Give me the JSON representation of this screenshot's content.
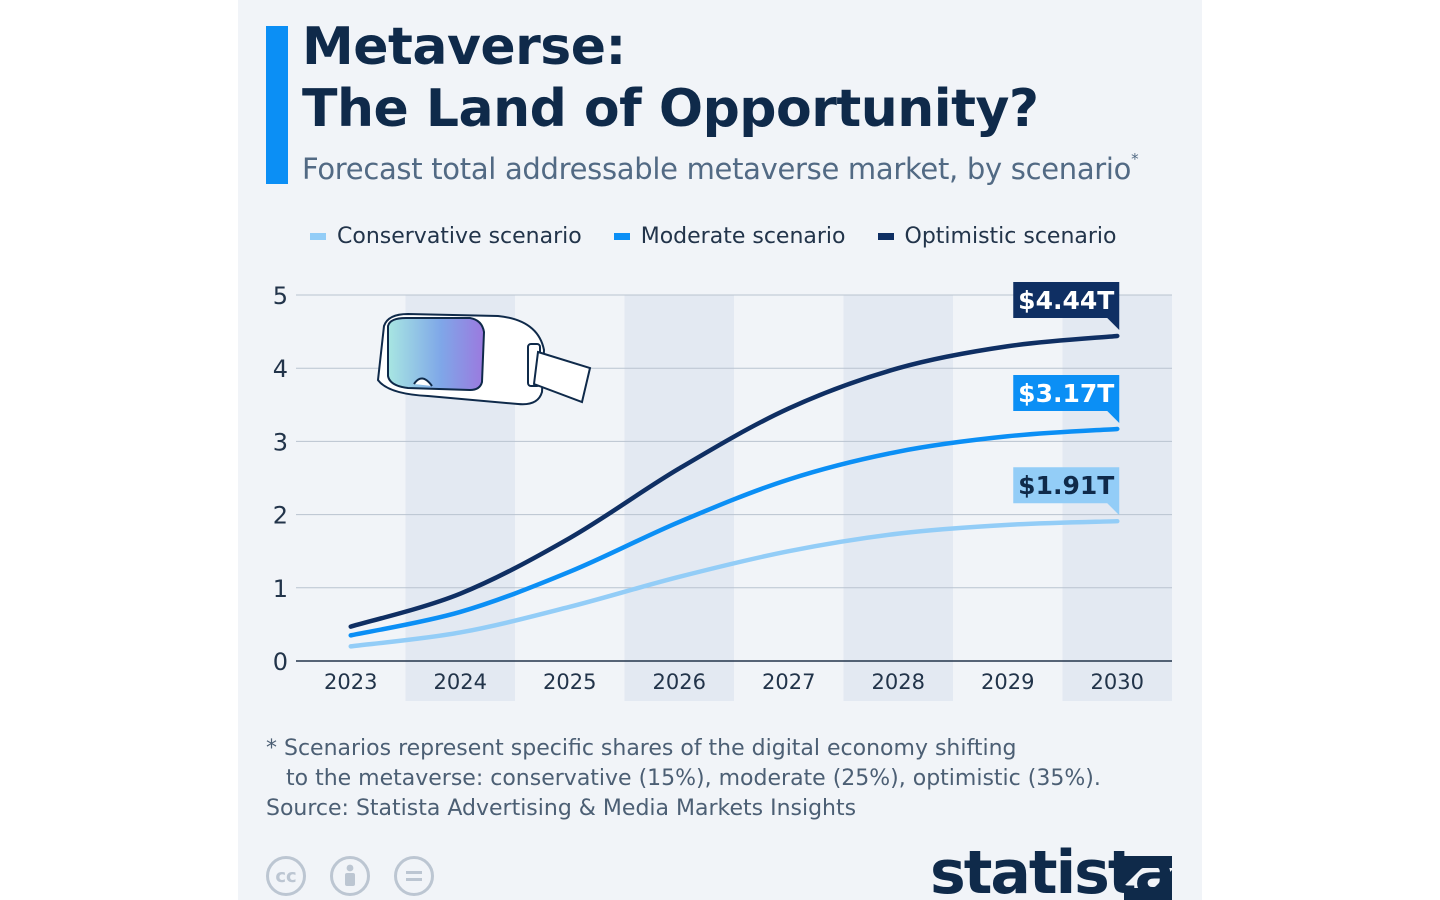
{
  "title_line1": "Metaverse:",
  "title_line2": "The Land of Opportunity?",
  "subtitle": "Forecast total addressable metaverse market, by scenario",
  "subtitle_mark": "*",
  "footnote_line1": "* Scenarios represent specific shares of the digital economy shifting",
  "footnote_line2": "to the metaverse: conservative (15%), moderate (25%), optimistic (35%).",
  "source": "Source: Statista Advertising & Media Markets Insights",
  "brand": "statista",
  "cc_icons": [
    "cc-icon",
    "attribution-icon",
    "no-derivatives-icon"
  ],
  "colors": {
    "conservative": "#93cdf7",
    "moderate": "#0b8ff5",
    "optimistic": "#0f2f63",
    "accent": "#0b8ff5",
    "title": "#0f2a4a"
  },
  "chart_data": {
    "type": "line",
    "x": [
      "2023",
      "2024",
      "2025",
      "2026",
      "2027",
      "2028",
      "2029",
      "2030"
    ],
    "series": [
      {
        "name": "Conservative scenario",
        "color": "#93cdf7",
        "label_text_color": "#0f2a4a",
        "values": [
          0.2,
          0.39,
          0.74,
          1.15,
          1.5,
          1.74,
          1.86,
          1.91
        ],
        "end_label": "$1.91T"
      },
      {
        "name": "Moderate scenario",
        "color": "#0b8ff5",
        "label_text_color": "#ffffff",
        "values": [
          0.35,
          0.67,
          1.22,
          1.9,
          2.48,
          2.86,
          3.07,
          3.17
        ],
        "end_label": "$3.17T"
      },
      {
        "name": "Optimistic scenario",
        "color": "#0f2f63",
        "label_text_color": "#ffffff",
        "values": [
          0.47,
          0.92,
          1.68,
          2.63,
          3.45,
          4.0,
          4.3,
          4.44
        ],
        "end_label": "$4.44T"
      }
    ],
    "ylim": [
      0,
      5
    ],
    "yticks": [
      "0",
      "1",
      "2",
      "3",
      "4",
      "5"
    ],
    "grid": true,
    "alternate_column_shading": true,
    "legend_position": "top",
    "illustration": "vr-headset-icon"
  }
}
